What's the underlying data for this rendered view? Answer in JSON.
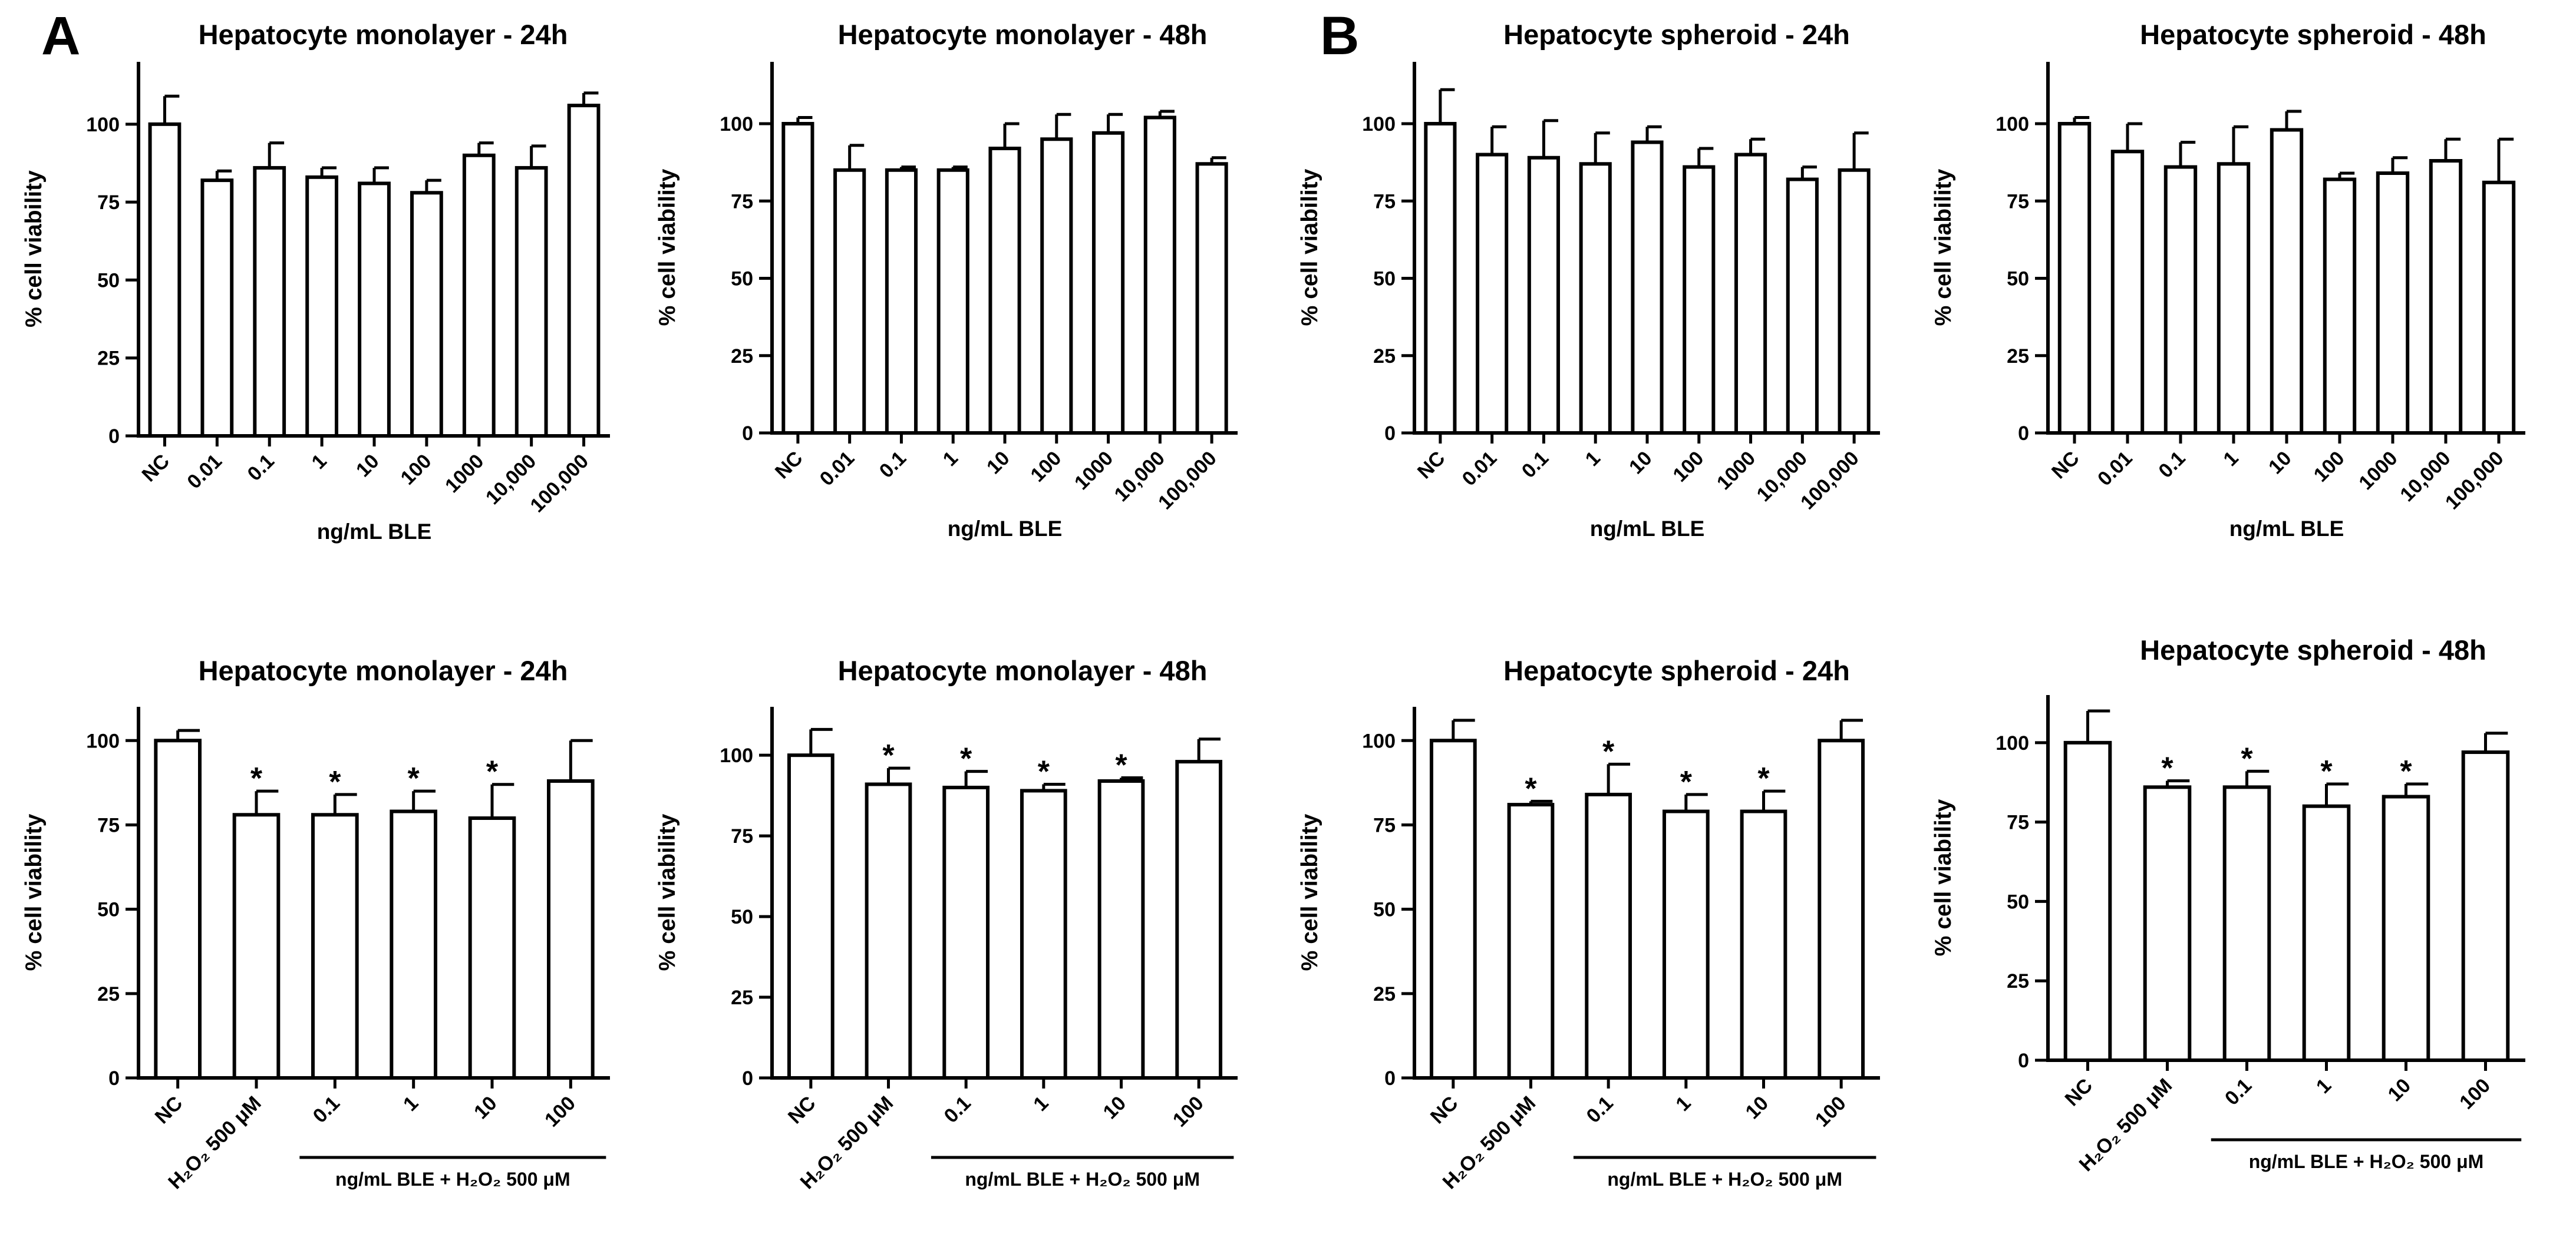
{
  "panel_labels": [
    "A",
    "B"
  ],
  "chart_data": [
    {
      "type": "bar",
      "title": "Hepatocyte monolayer - 24h",
      "ylabel": "% cell viability",
      "xlabel": "ng/mL BLE",
      "ylim": [
        0,
        120
      ],
      "yticks": [
        "0",
        "25",
        "50",
        "75",
        "100"
      ],
      "categories": [
        "NC",
        "0.01",
        "0.1",
        "1",
        "10",
        "100",
        "1000",
        "10,000",
        "100,000"
      ],
      "values": [
        100,
        82,
        86,
        83,
        81,
        78,
        90,
        86,
        106
      ],
      "errors": [
        9,
        3,
        8,
        3,
        5,
        4,
        4,
        7,
        4
      ],
      "significance": [],
      "group_label": ""
    },
    {
      "type": "bar",
      "title": "Hepatocyte monolayer - 48h",
      "ylabel": "% cell viability",
      "xlabel": "ng/mL BLE",
      "ylim": [
        0,
        120
      ],
      "yticks": [
        "0",
        "25",
        "50",
        "75",
        "100"
      ],
      "categories": [
        "NC",
        "0.01",
        "0.1",
        "1",
        "10",
        "100",
        "1000",
        "10,000",
        "100,000"
      ],
      "values": [
        100,
        85,
        85,
        85,
        92,
        95,
        97,
        102,
        87
      ],
      "errors": [
        2,
        8,
        1,
        1,
        8,
        8,
        6,
        2,
        2
      ],
      "significance": [],
      "group_label": ""
    },
    {
      "type": "bar",
      "title": "Hepatocyte spheroid - 24h",
      "ylabel": "% cell viability",
      "xlabel": "ng/mL BLE",
      "ylim": [
        0,
        120
      ],
      "yticks": [
        "0",
        "25",
        "50",
        "75",
        "100"
      ],
      "categories": [
        "NC",
        "0.01",
        "0.1",
        "1",
        "10",
        "100",
        "1000",
        "10,000",
        "100,000"
      ],
      "values": [
        100,
        90,
        89,
        87,
        94,
        86,
        90,
        82,
        85
      ],
      "errors": [
        11,
        9,
        12,
        10,
        5,
        6,
        5,
        4,
        12
      ],
      "significance": [],
      "group_label": ""
    },
    {
      "type": "bar",
      "title": "Hepatocyte spheroid - 48h",
      "ylabel": "% cell viability",
      "xlabel": "ng/mL BLE",
      "ylim": [
        0,
        120
      ],
      "yticks": [
        "0",
        "25",
        "50",
        "75",
        "100"
      ],
      "categories": [
        "NC",
        "0.01",
        "0.1",
        "1",
        "10",
        "100",
        "1000",
        "10,000",
        "100,000"
      ],
      "values": [
        100,
        91,
        86,
        87,
        98,
        82,
        84,
        88,
        81
      ],
      "errors": [
        2,
        9,
        8,
        12,
        6,
        2,
        5,
        7,
        14
      ],
      "significance": [],
      "group_label": ""
    },
    {
      "type": "bar",
      "title": "Hepatocyte monolayer - 24h",
      "ylabel": "% cell viability",
      "xlabel": "",
      "ylim": [
        0,
        110
      ],
      "yticks": [
        "0",
        "25",
        "50",
        "75",
        "100"
      ],
      "categories": [
        "NC",
        "H₂O₂ 500 μM",
        "0.1",
        "1",
        "10",
        "100"
      ],
      "values": [
        100,
        78,
        78,
        79,
        77,
        88
      ],
      "errors": [
        3,
        7,
        6,
        6,
        10,
        12
      ],
      "significance": [
        "",
        "*",
        "*",
        "*",
        "*",
        ""
      ],
      "group_label": "ng/mL BLE + H₂O₂ 500 μM"
    },
    {
      "type": "bar",
      "title": "Hepatocyte monolayer - 48h",
      "ylabel": "% cell viability",
      "xlabel": "",
      "ylim": [
        0,
        115
      ],
      "yticks": [
        "0",
        "25",
        "50",
        "75",
        "100"
      ],
      "categories": [
        "NC",
        "H₂O₂ 500 μM",
        "0.1",
        "1",
        "10",
        "100"
      ],
      "values": [
        100,
        91,
        90,
        89,
        92,
        98
      ],
      "errors": [
        8,
        5,
        5,
        2,
        1,
        7
      ],
      "significance": [
        "",
        "*",
        "*",
        "*",
        "*",
        ""
      ],
      "group_label": "ng/mL BLE + H₂O₂ 500 μM"
    },
    {
      "type": "bar",
      "title": "Hepatocyte spheroid - 24h",
      "ylabel": "% cell viability",
      "xlabel": "",
      "ylim": [
        0,
        110
      ],
      "yticks": [
        "0",
        "25",
        "50",
        "75",
        "100"
      ],
      "categories": [
        "NC",
        "H₂O₂ 500 μM",
        "0.1",
        "1",
        "10",
        "100"
      ],
      "values": [
        100,
        81,
        84,
        79,
        79,
        100
      ],
      "errors": [
        6,
        1,
        9,
        5,
        6,
        6
      ],
      "significance": [
        "",
        "*",
        "*",
        "*",
        "*",
        ""
      ],
      "group_label": "ng/mL BLE + H₂O₂ 500 μM"
    },
    {
      "type": "bar",
      "title": "Hepatocyte spheroid - 48h",
      "ylabel": "% cell viability",
      "xlabel": "",
      "ylim": [
        0,
        115
      ],
      "yticks": [
        "0",
        "25",
        "50",
        "75",
        "100"
      ],
      "categories": [
        "NC",
        "H₂O₂ 500 μM",
        "0.1",
        "1",
        "10",
        "100"
      ],
      "values": [
        100,
        86,
        86,
        80,
        83,
        97
      ],
      "errors": [
        10,
        2,
        5,
        7,
        4,
        6
      ],
      "significance": [
        "",
        "*",
        "*",
        "*",
        "*",
        ""
      ],
      "group_label": "ng/mL BLE + H₂O₂ 500 μM"
    }
  ]
}
